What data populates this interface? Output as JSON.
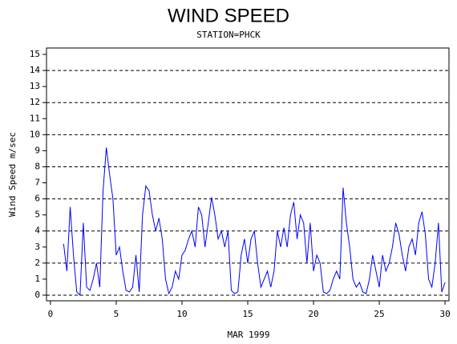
{
  "chart_data": {
    "type": "line",
    "title": "WIND SPEED",
    "subtitle": "STATION=PHCK",
    "x_label": "MAR 1999",
    "y_label": "Wind Speed m/sec",
    "color": "#0000ff",
    "xlim": [
      -0.3,
      30.3
    ],
    "xticks": [
      0,
      5,
      10,
      15,
      20,
      25,
      30
    ],
    "ylim": [
      -0.35,
      15.4
    ],
    "yticks": [
      0,
      1,
      2,
      3,
      4,
      5,
      6,
      7,
      8,
      9,
      10,
      11,
      12,
      13,
      14,
      15
    ],
    "grid": true,
    "grid_step": 2,
    "x": [
      1,
      1.25,
      1.5,
      1.75,
      2,
      2.25,
      2.5,
      2.75,
      3,
      3.25,
      3.5,
      3.75,
      4,
      4.25,
      4.5,
      4.75,
      5,
      5.25,
      5.5,
      5.75,
      6,
      6.25,
      6.5,
      6.75,
      7,
      7.25,
      7.5,
      7.75,
      8,
      8.25,
      8.5,
      8.75,
      9,
      9.25,
      9.5,
      9.75,
      10,
      10.25,
      10.5,
      10.75,
      11,
      11.25,
      11.5,
      11.75,
      12,
      12.25,
      12.5,
      12.75,
      13,
      13.25,
      13.5,
      13.75,
      14,
      14.25,
      14.5,
      14.75,
      15,
      15.25,
      15.5,
      15.75,
      16,
      16.25,
      16.5,
      16.75,
      17,
      17.25,
      17.5,
      17.75,
      18,
      18.25,
      18.5,
      18.75,
      19,
      19.25,
      19.5,
      19.75,
      20,
      20.25,
      20.5,
      20.75,
      21,
      21.25,
      21.5,
      21.75,
      22,
      22.25,
      22.5,
      22.75,
      23,
      23.25,
      23.5,
      23.75,
      24,
      24.25,
      24.5,
      24.75,
      25,
      25.25,
      25.5,
      25.75,
      26,
      26.25,
      26.5,
      26.75,
      27,
      27.25,
      27.5,
      27.75,
      28,
      28.25,
      28.5,
      28.75,
      29,
      29.25,
      29.5,
      29.75,
      30
    ],
    "values": [
      3.2,
      1.5,
      5.5,
      2.5,
      0.2,
      0,
      4.5,
      0.5,
      0.3,
      1.0,
      2.0,
      0.5,
      6.5,
      9.2,
      7.5,
      6.0,
      2.5,
      3.0,
      1.5,
      0.3,
      0.2,
      0.5,
      2.5,
      0.2,
      5.0,
      6.8,
      6.5,
      5.0,
      4.0,
      4.8,
      3.5,
      1.0,
      0.1,
      0.5,
      1.5,
      1.0,
      2.5,
      2.8,
      3.5,
      4.0,
      3.0,
      5.5,
      5.0,
      3.0,
      4.5,
      6.1,
      5.0,
      3.5,
      4.0,
      3.0,
      4.0,
      0.3,
      0.1,
      0.2,
      2.5,
      3.5,
      2.0,
      3.5,
      4.0,
      2.0,
      0.5,
      1.0,
      1.5,
      0.5,
      1.5,
      4.0,
      3.0,
      4.2,
      3.0,
      5.0,
      5.8,
      3.5,
      5.0,
      4.5,
      2.0,
      4.5,
      1.5,
      2.5,
      2.0,
      0.2,
      0.1,
      0.3,
      1.0,
      1.5,
      1.0,
      6.7,
      4.5,
      3.0,
      1.0,
      0.5,
      0.8,
      0.2,
      0.1,
      1.0,
      2.5,
      1.5,
      0.5,
      2.5,
      1.5,
      2.0,
      3.0,
      4.5,
      3.8,
      2.5,
      1.5,
      3.0,
      3.5,
      2.5,
      4.5,
      5.2,
      3.8,
      1.0,
      0.5,
      2.0,
      4.5,
      0.2,
      0.8
    ]
  }
}
